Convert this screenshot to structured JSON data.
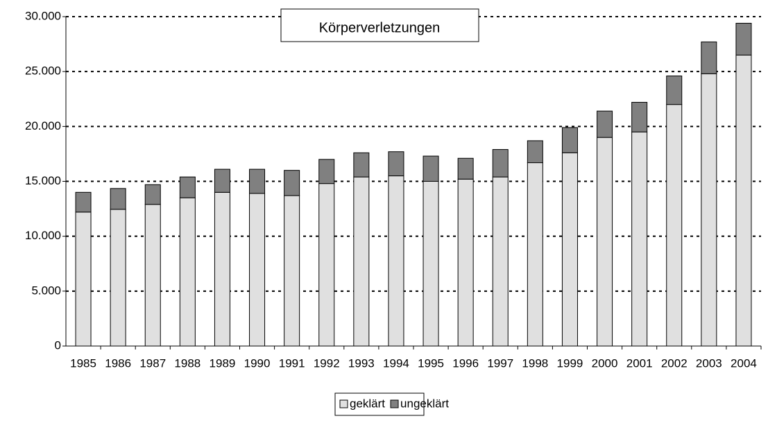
{
  "chart_data": {
    "type": "bar",
    "stacked": true,
    "title": "Körperverletzungen",
    "categories": [
      "1985",
      "1986",
      "1987",
      "1988",
      "1989",
      "1990",
      "1991",
      "1992",
      "1993",
      "1994",
      "1995",
      "1996",
      "1997",
      "1998",
      "1999",
      "2000",
      "2001",
      "2002",
      "2003",
      "2004"
    ],
    "series": [
      {
        "name": "geklärt",
        "color": "#e0e0e0",
        "values": [
          12200,
          12450,
          12900,
          13500,
          14000,
          13900,
          13700,
          14800,
          15400,
          15500,
          15000,
          15200,
          15400,
          16700,
          17600,
          19000,
          19500,
          22000,
          24800,
          26500
        ]
      },
      {
        "name": "ungeklärt",
        "color": "#808080",
        "values": [
          1800,
          1900,
          1800,
          1900,
          2100,
          2200,
          2300,
          2200,
          2200,
          2200,
          2300,
          1900,
          2500,
          2000,
          2300,
          2400,
          2700,
          2600,
          2900,
          2900
        ]
      }
    ],
    "ylim": [
      0,
      30000
    ],
    "yticks": [
      0,
      {
        "value": 5000,
        "label": "5.000"
      },
      {
        "value": 10000,
        "label": "10.000"
      },
      {
        "value": 15000,
        "label": "15.000"
      },
      {
        "value": 20000,
        "label": "20.000"
      },
      {
        "value": 25000,
        "label": "25.000"
      },
      {
        "value": 30000,
        "label": "30.000"
      }
    ],
    "grid": true,
    "legend": "bottom"
  }
}
